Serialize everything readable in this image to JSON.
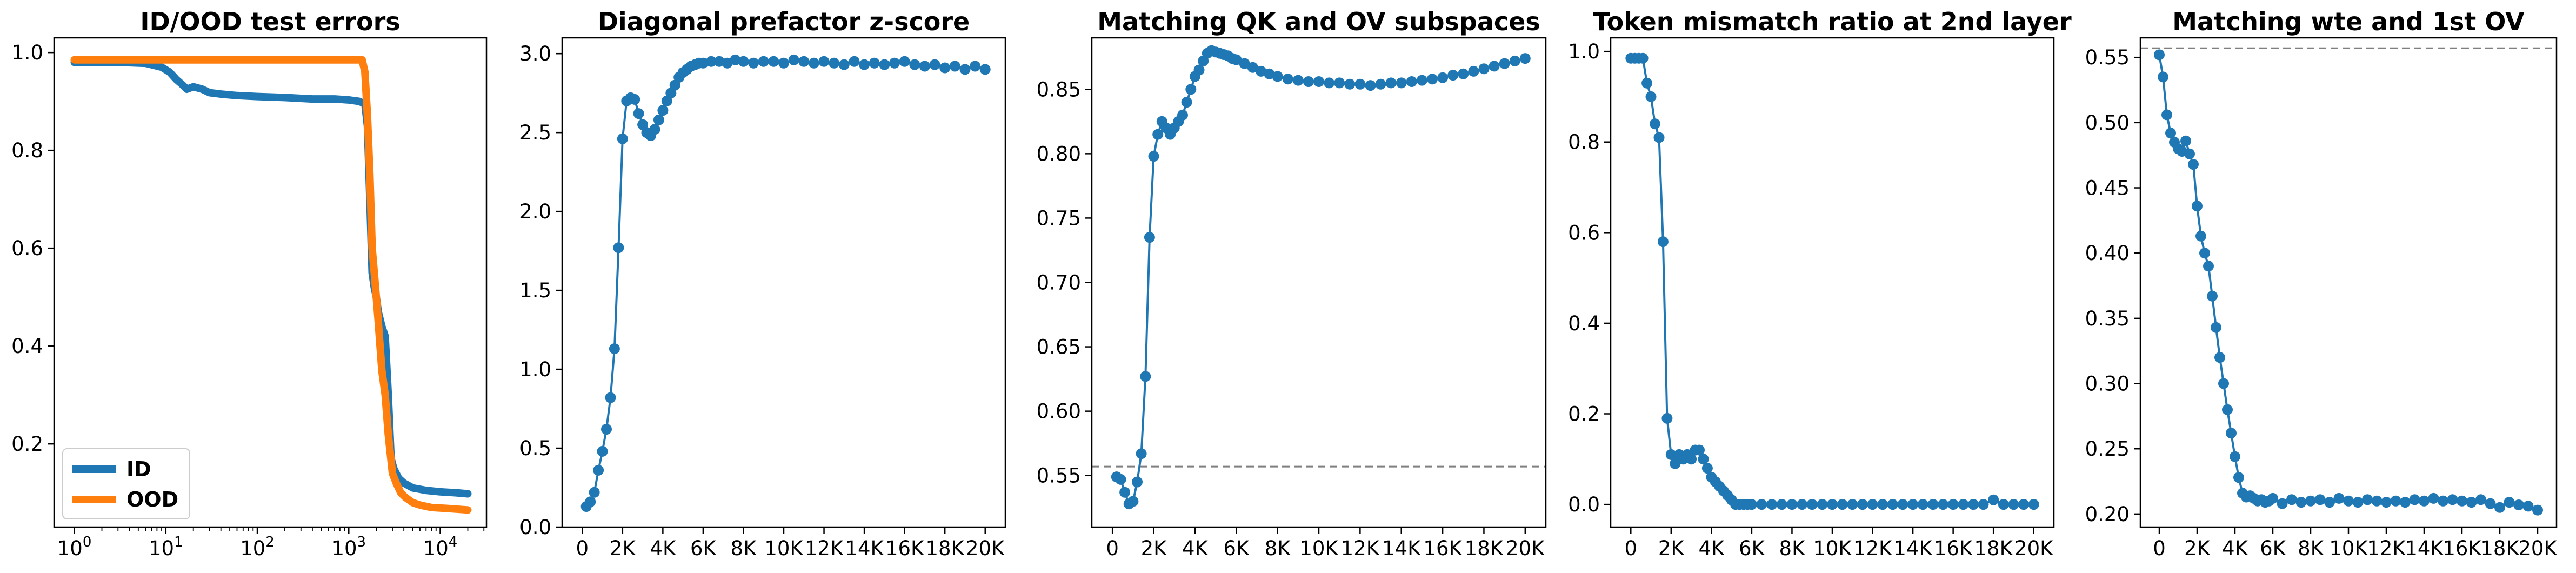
{
  "colors": {
    "blue": "#1f77b4",
    "orange": "#ff7f0e",
    "ref_line": "#7f7f7f"
  },
  "chart_data": [
    {
      "type": "line",
      "title": "ID/OOD test errors",
      "xscale": "log",
      "xlim": [
        0.6,
        32000
      ],
      "ylim": [
        0.03,
        1.03
      ],
      "xticks": [
        1,
        10,
        100,
        1000,
        10000
      ],
      "xtick_labels": [
        [
          "10",
          "0"
        ],
        [
          "10",
          "1"
        ],
        [
          "10",
          "2"
        ],
        [
          "10",
          "3"
        ],
        [
          "10",
          "4"
        ]
      ],
      "yticks": [
        0.2,
        0.4,
        0.6,
        0.8,
        1.0
      ],
      "ytick_labels": [
        "0.2",
        "0.4",
        "0.6",
        "0.8",
        "1.0"
      ],
      "legend": "lower left",
      "series": [
        {
          "name": "ID",
          "color": "#1f77b4",
          "x": [
            1,
            3,
            6,
            9,
            11,
            13,
            15,
            17,
            20,
            25,
            30,
            40,
            60,
            100,
            200,
            400,
            700,
            1000,
            1300,
            1500,
            1600,
            1700,
            1800,
            1900,
            2000,
            2100,
            2300,
            2500,
            2700,
            2900,
            3100,
            3500,
            4000,
            5000,
            7000,
            10000,
            15000,
            20000
          ],
          "y": [
            0.98,
            0.98,
            0.978,
            0.97,
            0.96,
            0.945,
            0.935,
            0.925,
            0.93,
            0.925,
            0.918,
            0.915,
            0.912,
            0.91,
            0.908,
            0.905,
            0.905,
            0.903,
            0.9,
            0.895,
            0.85,
            0.7,
            0.55,
            0.52,
            0.5,
            0.47,
            0.44,
            0.42,
            0.3,
            0.17,
            0.15,
            0.13,
            0.12,
            0.11,
            0.105,
            0.102,
            0.1,
            0.098
          ]
        },
        {
          "name": "OOD",
          "color": "#ff7f0e",
          "x": [
            1,
            10,
            100,
            1000,
            1400,
            1500,
            1600,
            1700,
            1800,
            1900,
            2000,
            2100,
            2300,
            2500,
            2700,
            3000,
            3300,
            3700,
            4200,
            5000,
            6000,
            8000,
            12000,
            20000
          ],
          "y": [
            0.985,
            0.985,
            0.985,
            0.985,
            0.985,
            0.96,
            0.87,
            0.75,
            0.6,
            0.55,
            0.5,
            0.45,
            0.35,
            0.3,
            0.22,
            0.14,
            0.12,
            0.1,
            0.09,
            0.08,
            0.075,
            0.07,
            0.068,
            0.065
          ]
        }
      ]
    },
    {
      "type": "line",
      "title": "Diagonal prefactor z-score",
      "xlim": [
        -1000,
        21000
      ],
      "ylim": [
        0,
        3.1
      ],
      "xticks": [
        0,
        2000,
        4000,
        6000,
        8000,
        10000,
        12000,
        14000,
        16000,
        18000,
        20000
      ],
      "xtick_labels": [
        "0",
        "2K",
        "4K",
        "6K",
        "8K",
        "10K",
        "12K",
        "14K",
        "16K",
        "18K",
        "20K"
      ],
      "yticks": [
        0,
        0.5,
        1.0,
        1.5,
        2.0,
        2.5,
        3.0
      ],
      "ytick_labels": [
        "0.0",
        "0.5",
        "1.0",
        "1.5",
        "2.0",
        "2.5",
        "3.0"
      ],
      "series": [
        {
          "color": "#1f77b4",
          "x": [
            200,
            400,
            600,
            800,
            1000,
            1200,
            1400,
            1600,
            1800,
            2000,
            2200,
            2400,
            2600,
            2800,
            3000,
            3200,
            3400,
            3600,
            3800,
            4000,
            4200,
            4400,
            4600,
            4800,
            5000,
            5200,
            5400,
            5600,
            5800,
            6000,
            6400,
            6800,
            7200,
            7600,
            8000,
            8500,
            9000,
            9500,
            10000,
            10500,
            11000,
            11500,
            12000,
            12500,
            13000,
            13500,
            14000,
            14500,
            15000,
            15500,
            16000,
            16500,
            17000,
            17500,
            18000,
            18500,
            19000,
            19500,
            20000
          ],
          "y": [
            0.13,
            0.16,
            0.22,
            0.36,
            0.48,
            0.62,
            0.82,
            1.13,
            1.77,
            2.46,
            2.7,
            2.72,
            2.71,
            2.62,
            2.55,
            2.5,
            2.48,
            2.52,
            2.58,
            2.64,
            2.7,
            2.75,
            2.8,
            2.85,
            2.88,
            2.9,
            2.92,
            2.93,
            2.94,
            2.94,
            2.95,
            2.95,
            2.94,
            2.96,
            2.95,
            2.94,
            2.95,
            2.95,
            2.94,
            2.96,
            2.95,
            2.94,
            2.95,
            2.94,
            2.93,
            2.95,
            2.93,
            2.94,
            2.93,
            2.94,
            2.95,
            2.93,
            2.92,
            2.93,
            2.91,
            2.92,
            2.9,
            2.92,
            2.9
          ]
        }
      ]
    },
    {
      "type": "line",
      "title": "Matching QK and OV subspaces",
      "xlim": [
        -1000,
        21000
      ],
      "ylim": [
        0.51,
        0.89
      ],
      "xticks": [
        0,
        2000,
        4000,
        6000,
        8000,
        10000,
        12000,
        14000,
        16000,
        18000,
        20000
      ],
      "xtick_labels": [
        "0",
        "2K",
        "4K",
        "6K",
        "8K",
        "10K",
        "12K",
        "14K",
        "16K",
        "18K",
        "20K"
      ],
      "yticks": [
        0.55,
        0.6,
        0.65,
        0.7,
        0.75,
        0.8,
        0.85
      ],
      "ytick_labels": [
        "0.55",
        "0.60",
        "0.65",
        "0.70",
        "0.75",
        "0.80",
        "0.85"
      ],
      "reference_line": 0.557,
      "series": [
        {
          "color": "#1f77b4",
          "x": [
            200,
            400,
            600,
            800,
            1000,
            1200,
            1400,
            1600,
            1800,
            2000,
            2200,
            2400,
            2600,
            2800,
            3000,
            3200,
            3400,
            3600,
            3800,
            4000,
            4200,
            4400,
            4600,
            4800,
            5000,
            5200,
            5400,
            5600,
            5800,
            6000,
            6400,
            6800,
            7200,
            7600,
            8000,
            8500,
            9000,
            9500,
            10000,
            10500,
            11000,
            11500,
            12000,
            12500,
            13000,
            13500,
            14000,
            14500,
            15000,
            15500,
            16000,
            16500,
            17000,
            17500,
            18000,
            18500,
            19000,
            19500,
            20000
          ],
          "y": [
            0.549,
            0.547,
            0.537,
            0.528,
            0.53,
            0.545,
            0.567,
            0.627,
            0.735,
            0.798,
            0.815,
            0.825,
            0.82,
            0.815,
            0.82,
            0.825,
            0.83,
            0.84,
            0.85,
            0.86,
            0.865,
            0.872,
            0.878,
            0.88,
            0.879,
            0.878,
            0.877,
            0.876,
            0.874,
            0.873,
            0.87,
            0.867,
            0.864,
            0.862,
            0.86,
            0.858,
            0.857,
            0.856,
            0.856,
            0.855,
            0.855,
            0.854,
            0.854,
            0.853,
            0.854,
            0.855,
            0.855,
            0.856,
            0.857,
            0.858,
            0.859,
            0.861,
            0.862,
            0.864,
            0.866,
            0.868,
            0.87,
            0.872,
            0.874
          ]
        }
      ]
    },
    {
      "type": "line",
      "title": "Token mismatch ratio at 2nd layer",
      "xlim": [
        -1000,
        21000
      ],
      "ylim": [
        -0.05,
        1.03
      ],
      "xticks": [
        0,
        2000,
        4000,
        6000,
        8000,
        10000,
        12000,
        14000,
        16000,
        18000,
        20000
      ],
      "xtick_labels": [
        "0",
        "2K",
        "4K",
        "6K",
        "8K",
        "10K",
        "12K",
        "14K",
        "16K",
        "18K",
        "20K"
      ],
      "yticks": [
        0,
        0.2,
        0.4,
        0.6,
        0.8,
        1.0
      ],
      "ytick_labels": [
        "0.0",
        "0.2",
        "0.4",
        "0.6",
        "0.8",
        "1.0"
      ],
      "series": [
        {
          "color": "#1f77b4",
          "x": [
            0,
            200,
            400,
            600,
            800,
            1000,
            1200,
            1400,
            1600,
            1800,
            2000,
            2200,
            2400,
            2600,
            2800,
            3000,
            3200,
            3400,
            3600,
            3800,
            4000,
            4200,
            4400,
            4600,
            4800,
            5000,
            5200,
            5400,
            5600,
            5800,
            6000,
            6500,
            7000,
            7500,
            8000,
            8500,
            9000,
            9500,
            10000,
            10500,
            11000,
            11500,
            12000,
            12500,
            13000,
            13500,
            14000,
            14500,
            15000,
            15500,
            16000,
            16500,
            17000,
            17500,
            18000,
            18500,
            19000,
            19500,
            20000
          ],
          "y": [
            0.985,
            0.985,
            0.985,
            0.985,
            0.93,
            0.9,
            0.84,
            0.81,
            0.58,
            0.19,
            0.11,
            0.09,
            0.11,
            0.1,
            0.11,
            0.1,
            0.12,
            0.12,
            0.1,
            0.08,
            0.06,
            0.05,
            0.04,
            0.03,
            0.02,
            0.01,
            0.0,
            0.0,
            0.0,
            0.0,
            0.0,
            0.0,
            0.0,
            0.0,
            0.0,
            0.0,
            0.0,
            0.0,
            0.0,
            0.0,
            0.0,
            0.0,
            0.0,
            0.0,
            0.0,
            0.0,
            0.0,
            0.0,
            0.0,
            0.0,
            0.0,
            0.0,
            0.0,
            0.0,
            0.01,
            0.0,
            0.0,
            0.0,
            0.0
          ]
        }
      ]
    },
    {
      "type": "line",
      "title": "Matching wte and 1st OV",
      "xlim": [
        -1000,
        21000
      ],
      "ylim": [
        0.19,
        0.565
      ],
      "xticks": [
        0,
        2000,
        4000,
        6000,
        8000,
        10000,
        12000,
        14000,
        16000,
        18000,
        20000
      ],
      "xtick_labels": [
        "0",
        "2K",
        "4K",
        "6K",
        "8K",
        "10K",
        "12K",
        "14K",
        "16K",
        "18K",
        "20K"
      ],
      "yticks": [
        0.2,
        0.25,
        0.3,
        0.35,
        0.4,
        0.45,
        0.5,
        0.55
      ],
      "ytick_labels": [
        "0.20",
        "0.25",
        "0.30",
        "0.35",
        "0.40",
        "0.45",
        "0.50",
        "0.55"
      ],
      "reference_line": 0.557,
      "series": [
        {
          "color": "#1f77b4",
          "x": [
            0,
            200,
            400,
            600,
            800,
            1000,
            1200,
            1400,
            1600,
            1800,
            2000,
            2200,
            2400,
            2600,
            2800,
            3000,
            3200,
            3400,
            3600,
            3800,
            4000,
            4200,
            4400,
            4600,
            4800,
            5000,
            5200,
            5400,
            5600,
            5800,
            6000,
            6500,
            7000,
            7500,
            8000,
            8500,
            9000,
            9500,
            10000,
            10500,
            11000,
            11500,
            12000,
            12500,
            13000,
            13500,
            14000,
            14500,
            15000,
            15500,
            16000,
            16500,
            17000,
            17500,
            18000,
            18500,
            19000,
            19500,
            20000
          ],
          "y": [
            0.552,
            0.535,
            0.506,
            0.492,
            0.485,
            0.48,
            0.478,
            0.486,
            0.476,
            0.468,
            0.436,
            0.413,
            0.4,
            0.39,
            0.367,
            0.343,
            0.32,
            0.3,
            0.28,
            0.262,
            0.244,
            0.228,
            0.216,
            0.213,
            0.214,
            0.212,
            0.21,
            0.211,
            0.209,
            0.21,
            0.212,
            0.208,
            0.211,
            0.209,
            0.21,
            0.211,
            0.209,
            0.212,
            0.21,
            0.209,
            0.211,
            0.21,
            0.209,
            0.21,
            0.209,
            0.211,
            0.21,
            0.212,
            0.21,
            0.211,
            0.21,
            0.209,
            0.211,
            0.208,
            0.205,
            0.209,
            0.207,
            0.206,
            0.203
          ]
        }
      ]
    }
  ]
}
